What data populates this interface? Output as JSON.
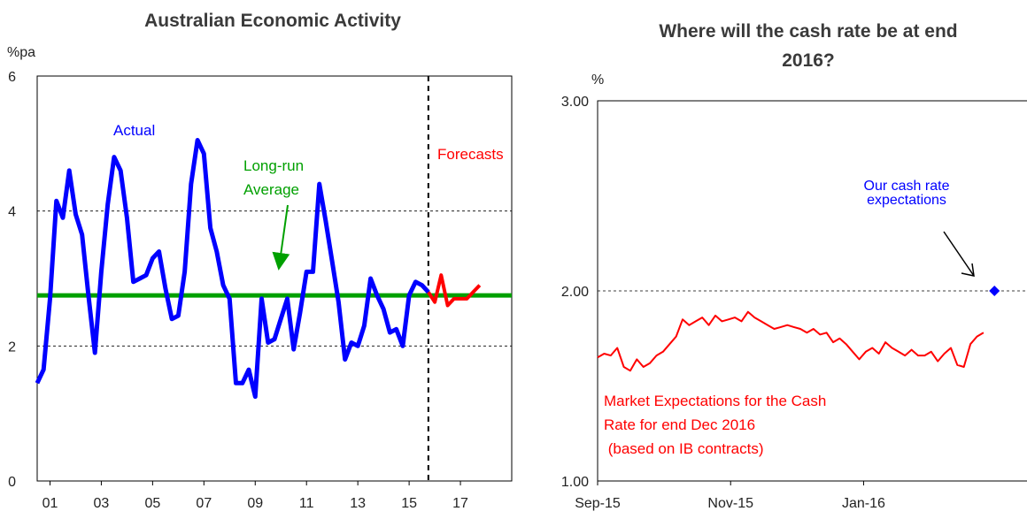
{
  "chart_data": [
    {
      "type": "line",
      "title": "Australian Economic Activity",
      "ylabel": "%pa",
      "ylim": [
        0,
        6
      ],
      "yticks": [
        0,
        2,
        4,
        6
      ],
      "xlim": [
        2000.5,
        2019.0
      ],
      "xticks": [
        {
          "x": 2001,
          "label": "01"
        },
        {
          "x": 2003,
          "label": "03"
        },
        {
          "x": 2005,
          "label": "05"
        },
        {
          "x": 2007,
          "label": "07"
        },
        {
          "x": 2009,
          "label": "09"
        },
        {
          "x": 2011,
          "label": "11"
        },
        {
          "x": 2013,
          "label": "13"
        },
        {
          "x": 2015,
          "label": "15"
        },
        {
          "x": 2017,
          "label": "17"
        }
      ],
      "grid": "horizontal dashed",
      "forecast_start": 2015.75,
      "long_run_average": 2.75,
      "annotations": {
        "actual": "Actual",
        "average_line1": "Long-run",
        "average_line2": "Average",
        "forecasts": "Forecasts"
      },
      "series": [
        {
          "name": "Actual",
          "color": "#0000ff",
          "x": [
            2000.5,
            2000.75,
            2001.0,
            2001.25,
            2001.5,
            2001.75,
            2002.0,
            2002.25,
            2002.5,
            2002.75,
            2003.0,
            2003.25,
            2003.5,
            2003.75,
            2004.0,
            2004.25,
            2004.5,
            2004.75,
            2005.0,
            2005.25,
            2005.5,
            2005.75,
            2006.0,
            2006.25,
            2006.5,
            2006.75,
            2007.0,
            2007.25,
            2007.5,
            2007.75,
            2008.0,
            2008.25,
            2008.5,
            2008.75,
            2009.0,
            2009.25,
            2009.5,
            2009.75,
            2010.0,
            2010.25,
            2010.5,
            2010.75,
            2011.0,
            2011.25,
            2011.5,
            2011.75,
            2012.0,
            2012.25,
            2012.5,
            2012.75,
            2013.0,
            2013.25,
            2013.5,
            2013.75,
            2014.0,
            2014.25,
            2014.5,
            2014.75,
            2015.0,
            2015.25,
            2015.5,
            2015.75
          ],
          "values": [
            1.45,
            1.65,
            2.7,
            4.15,
            3.9,
            4.6,
            3.95,
            3.65,
            2.75,
            1.9,
            3.1,
            4.1,
            4.8,
            4.6,
            3.9,
            2.95,
            3.0,
            3.05,
            3.3,
            3.4,
            2.85,
            2.4,
            2.45,
            3.1,
            4.4,
            5.05,
            4.85,
            3.75,
            3.4,
            2.9,
            2.7,
            1.45,
            1.45,
            1.65,
            1.25,
            2.7,
            2.05,
            2.1,
            2.4,
            2.7,
            1.95,
            2.5,
            3.1,
            3.1,
            4.4,
            3.85,
            3.25,
            2.65,
            1.8,
            2.05,
            2.0,
            2.3,
            3.0,
            2.75,
            2.55,
            2.2,
            2.25,
            2.0,
            2.75,
            2.95,
            2.9,
            2.8
          ]
        },
        {
          "name": "Forecasts",
          "color": "#ff0000",
          "x": [
            2015.75,
            2016.0,
            2016.25,
            2016.5,
            2016.75,
            2017.0,
            2017.25,
            2017.5,
            2017.75
          ],
          "values": [
            2.8,
            2.65,
            3.05,
            2.6,
            2.7,
            2.7,
            2.7,
            2.8,
            2.9
          ]
        },
        {
          "name": "Long-run Average",
          "color": "#00a000",
          "x": [
            2000.5,
            2019.0
          ],
          "values": [
            2.75,
            2.75
          ]
        }
      ]
    },
    {
      "type": "line",
      "title_line1": "Where will the cash rate be at end",
      "title_line2": "2016?",
      "ylabel": "%",
      "ylim": [
        1.0,
        3.0
      ],
      "yticks": [
        {
          "v": 1.0,
          "label": "1.00"
        },
        {
          "v": 2.0,
          "label": "2.00"
        },
        {
          "v": 3.0,
          "label": "3.00"
        }
      ],
      "xlim": [
        "2015-09-01",
        "2016-03-20"
      ],
      "xticks": [
        {
          "date": "2015-09-01",
          "label": "Sep-15"
        },
        {
          "date": "2015-11-01",
          "label": "Nov-15"
        },
        {
          "date": "2016-01-01",
          "label": "Jan-16"
        }
      ],
      "grid": "horizontal dashed",
      "annotations": {
        "expectation_line1": "Our cash rate",
        "expectation_line2": "expectations",
        "market_line1": "Market Expectations for the Cash",
        "market_line2": "Rate for end Dec 2016",
        "market_line3": " (based on IB contracts)"
      },
      "point": {
        "name": "Our cash rate expectations",
        "date": "2016-03-01",
        "value": 2.0,
        "color": "#0000ff"
      },
      "series": [
        {
          "name": "Market Expectations for the Cash Rate for end Dec 2016",
          "color": "#ff0000",
          "x": [
            "2015-09-01",
            "2015-09-04",
            "2015-09-07",
            "2015-09-10",
            "2015-09-13",
            "2015-09-16",
            "2015-09-19",
            "2015-09-22",
            "2015-09-25",
            "2015-09-28",
            "2015-10-01",
            "2015-10-04",
            "2015-10-07",
            "2015-10-10",
            "2015-10-13",
            "2015-10-16",
            "2015-10-19",
            "2015-10-22",
            "2015-10-25",
            "2015-10-28",
            "2015-10-31",
            "2015-11-03",
            "2015-11-06",
            "2015-11-09",
            "2015-11-12",
            "2015-11-15",
            "2015-11-18",
            "2015-11-21",
            "2015-11-24",
            "2015-11-27",
            "2015-11-30",
            "2015-12-03",
            "2015-12-06",
            "2015-12-09",
            "2015-12-12",
            "2015-12-15",
            "2015-12-18",
            "2015-12-21",
            "2015-12-24",
            "2015-12-27",
            "2015-12-30",
            "2016-01-02",
            "2016-01-05",
            "2016-01-08",
            "2016-01-11",
            "2016-01-14",
            "2016-01-17",
            "2016-01-20",
            "2016-01-23",
            "2016-01-26",
            "2016-01-29",
            "2016-02-01",
            "2016-02-04",
            "2016-02-07",
            "2016-02-10",
            "2016-02-13",
            "2016-02-16",
            "2016-02-19",
            "2016-02-22",
            "2016-02-25"
          ],
          "values": [
            1.65,
            1.67,
            1.66,
            1.7,
            1.6,
            1.58,
            1.64,
            1.6,
            1.62,
            1.66,
            1.68,
            1.72,
            1.76,
            1.85,
            1.82,
            1.84,
            1.86,
            1.82,
            1.87,
            1.84,
            1.85,
            1.86,
            1.84,
            1.89,
            1.86,
            1.84,
            1.82,
            1.8,
            1.81,
            1.82,
            1.81,
            1.8,
            1.78,
            1.8,
            1.77,
            1.78,
            1.73,
            1.75,
            1.72,
            1.68,
            1.64,
            1.68,
            1.7,
            1.67,
            1.73,
            1.7,
            1.68,
            1.66,
            1.69,
            1.66,
            1.66,
            1.68,
            1.63,
            1.67,
            1.7,
            1.61,
            1.6,
            1.72,
            1.76,
            1.78
          ]
        }
      ]
    }
  ]
}
